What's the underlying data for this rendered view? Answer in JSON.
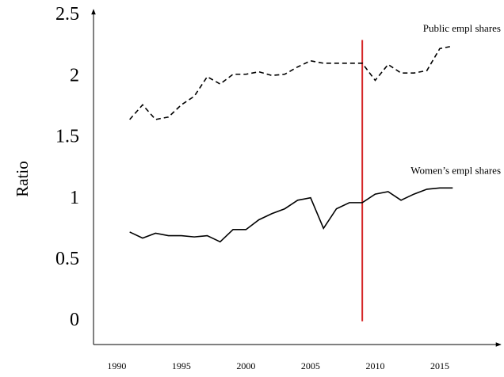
{
  "chart_data": {
    "type": "line",
    "y_label": "Ratio",
    "x": [
      1991,
      1992,
      1993,
      1994,
      1995,
      1996,
      1997,
      1998,
      1999,
      2000,
      2001,
      2002,
      2003,
      2004,
      2005,
      2006,
      2007,
      2008,
      2009,
      2010,
      2011,
      2012,
      2013,
      2014,
      2015,
      2016
    ],
    "series": [
      {
        "name": "Public empl shares",
        "color": "#000000",
        "dash": true,
        "values": [
          1.65,
          1.77,
          1.65,
          1.67,
          1.77,
          1.84,
          2.0,
          1.94,
          2.02,
          2.02,
          2.04,
          2.01,
          2.02,
          2.08,
          2.13,
          2.11,
          2.11,
          2.11,
          2.11,
          1.97,
          2.1,
          2.03,
          2.03,
          2.05,
          2.23,
          2.25
        ]
      },
      {
        "name": "Women’s empl shares",
        "color": "#000000",
        "dash": false,
        "values": [
          0.73,
          0.68,
          0.72,
          0.7,
          0.7,
          0.69,
          0.7,
          0.65,
          0.75,
          0.75,
          0.83,
          0.88,
          0.92,
          0.99,
          1.01,
          0.76,
          0.92,
          0.97,
          0.97,
          1.04,
          1.06,
          0.99,
          1.04,
          1.08,
          1.09,
          1.09
        ]
      }
    ],
    "reference_line": {
      "x": 2009,
      "y_range": [
        0,
        2.3
      ],
      "color": "#d62728"
    },
    "xlim": [
      1988.2,
      2019.6
    ],
    "ylim": [
      -0.19,
      2.53
    ],
    "xticks": [
      1990,
      1995,
      2000,
      2005,
      2010,
      2015
    ],
    "yticks": [
      0,
      0.5,
      1,
      1.5,
      2,
      2.5
    ],
    "grid": false
  }
}
